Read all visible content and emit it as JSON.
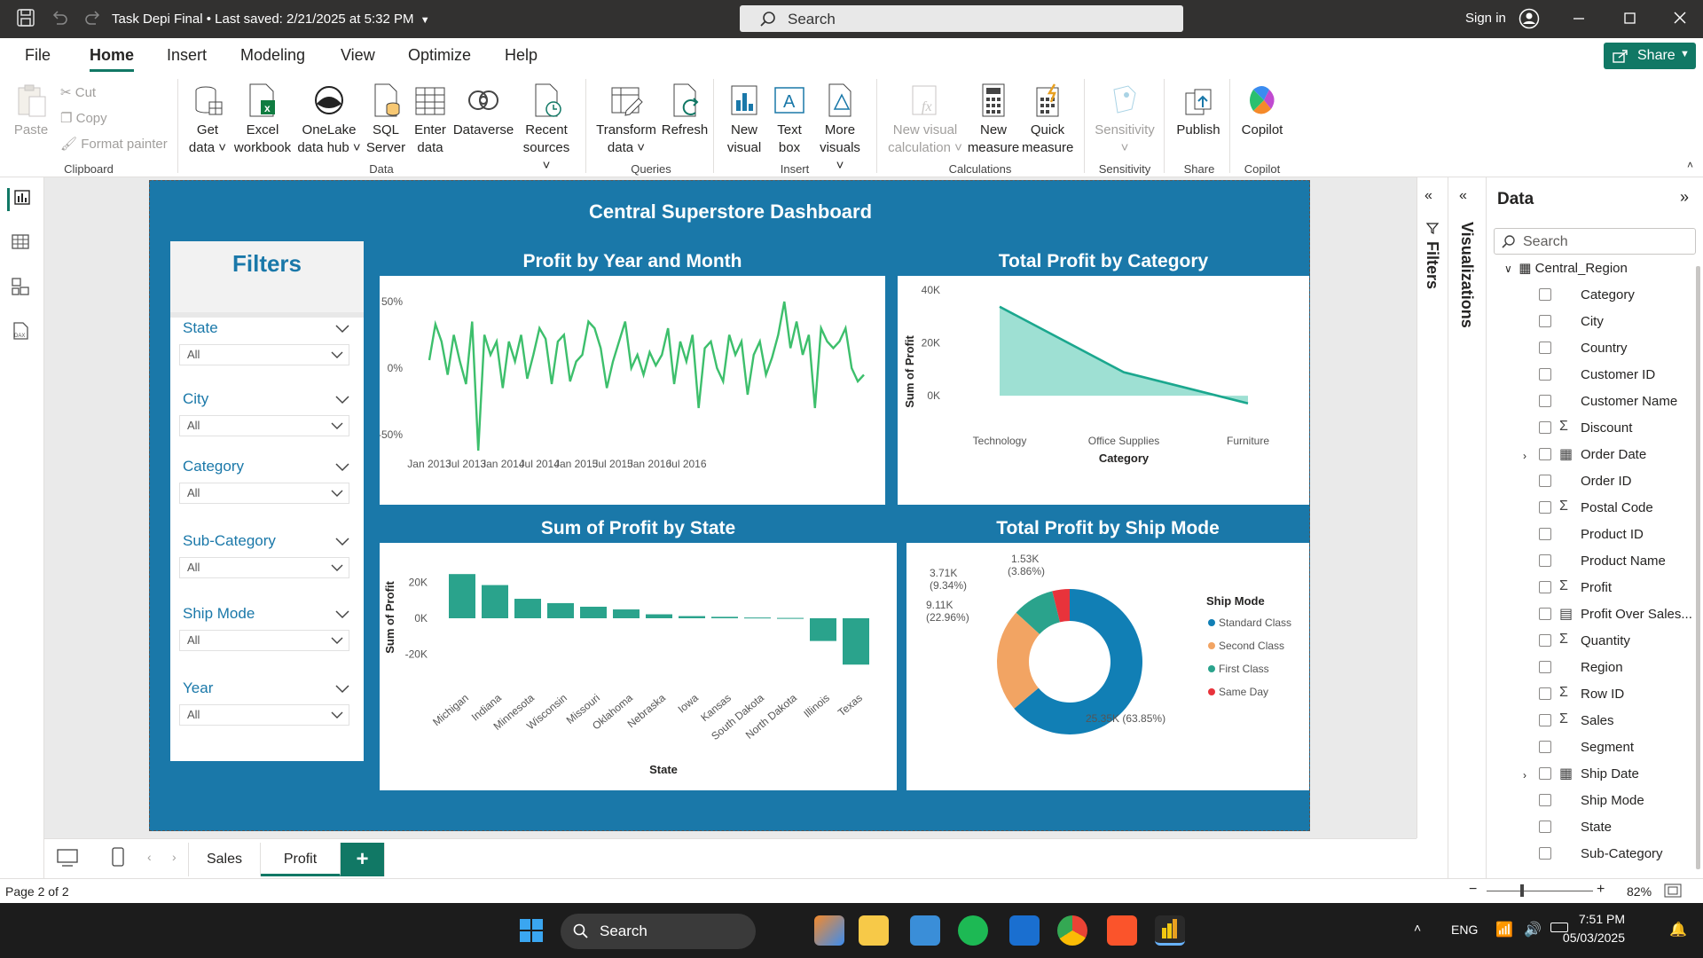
{
  "title_bar": {
    "file_title": "Task Depi Final",
    "saved": "Last saved: 2/21/2025 at 5:32 PM",
    "search_placeholder": "Search",
    "sign_in": "Sign in"
  },
  "menu": {
    "tabs": [
      "File",
      "Home",
      "Insert",
      "Modeling",
      "View",
      "Optimize",
      "Help"
    ],
    "active": "Home",
    "share": "Share"
  },
  "ribbon": {
    "clipboard": {
      "paste": "Paste",
      "cut": "Cut",
      "copy": "Copy",
      "format_painter": "Format painter",
      "group": "Clipboard"
    },
    "data": {
      "get_data_1": "Get",
      "get_data_2": "data",
      "excel_1": "Excel",
      "excel_2": "workbook",
      "onelake_1": "OneLake",
      "onelake_2": "data hub",
      "sql_1": "SQL",
      "sql_2": "Server",
      "enter_1": "Enter",
      "enter_2": "data",
      "dataverse": "Dataverse",
      "recent_1": "Recent",
      "recent_2": "sources",
      "group": "Data"
    },
    "queries": {
      "transform_1": "Transform",
      "transform_2": "data",
      "refresh": "Refresh",
      "group": "Queries"
    },
    "insert": {
      "new_visual_1": "New",
      "new_visual_2": "visual",
      "text_box_1": "Text",
      "text_box_2": "box",
      "more_1": "More",
      "more_2": "visuals",
      "group": "Insert"
    },
    "calculations": {
      "new_visual_calc_1": "New visual",
      "new_visual_calc_2": "calculation",
      "new_measure_1": "New",
      "new_measure_2": "measure",
      "quick_measure_1": "Quick",
      "quick_measure_2": "measure",
      "group": "Calculations"
    },
    "sensitivity": {
      "label": "Sensitivity",
      "group": "Sensitivity"
    },
    "share": {
      "publish": "Publish",
      "group": "Share"
    },
    "copilot": {
      "label": "Copilot",
      "group": "Copilot"
    }
  },
  "report": {
    "title": "Central Superstore Dashboard",
    "filters": {
      "title": "Filters",
      "items": [
        {
          "label": "State",
          "value": "All"
        },
        {
          "label": "City",
          "value": "All"
        },
        {
          "label": "Category",
          "value": "All"
        },
        {
          "label": "Sub-Category",
          "value": "All"
        },
        {
          "label": "Ship Mode",
          "value": "All"
        },
        {
          "label": "Year",
          "value": "All"
        }
      ]
    },
    "visuals": {
      "profit_month": {
        "title": "Profit by Year and Month"
      },
      "profit_category": {
        "title": "Total Profit by Category"
      },
      "profit_state": {
        "title": "Sum of Profit by State"
      },
      "profit_shipmode": {
        "title": "Total Profit by Ship Mode"
      }
    }
  },
  "chart_data": [
    {
      "type": "line",
      "title": "Profit by Year and Month",
      "series": [
        {
          "values": [
            6,
            33,
            20,
            -5,
            25,
            5,
            -12,
            35,
            -62,
            25,
            10,
            20,
            -15,
            20,
            5,
            25,
            -8,
            10,
            30,
            22,
            -12,
            20,
            25,
            -10,
            5,
            10,
            35,
            30,
            15,
            -15,
            5,
            20,
            35,
            0,
            10,
            -5,
            12,
            2,
            10,
            30,
            -12,
            20,
            5,
            25,
            -30,
            15,
            20,
            0,
            -10,
            25,
            10,
            20,
            -20,
            10,
            20,
            -5,
            8,
            25,
            50,
            15,
            35,
            10,
            25,
            -30,
            30,
            20,
            15,
            20,
            30,
            0,
            -10,
            -5
          ]
        }
      ],
      "x_ticks": [
        "Jan 2013",
        "Jul 2013",
        "Jan 2014",
        "Jul 2014",
        "Jan 2015",
        "Jul 2015",
        "Jan 2016",
        "Jul 2016"
      ],
      "y_ticks": [
        "50%",
        "0%",
        "-50%"
      ],
      "ylim": [
        -60,
        60
      ]
    },
    {
      "type": "area",
      "title": "Total Profit by Category",
      "categories": [
        "Technology",
        "Office Supplies",
        "Furniture"
      ],
      "values": [
        33700,
        8900,
        -2900
      ],
      "xlabel": "Category",
      "ylabel": "Sum of Profit",
      "y_ticks": [
        "40K",
        "20K",
        "0K"
      ],
      "ylim": [
        0,
        40000
      ]
    },
    {
      "type": "bar",
      "title": "Sum of Profit by State",
      "categories": [
        "Michigan",
        "Indiana",
        "Minnesota",
        "Wisconsin",
        "Missouri",
        "Oklahoma",
        "Nebraska",
        "Iowa",
        "Kansas",
        "South Dakota",
        "North Dakota",
        "Illinois",
        "Texas"
      ],
      "values": [
        24500,
        18400,
        10800,
        8400,
        6400,
        4900,
        2200,
        1200,
        800,
        400,
        200,
        -12600,
        -25700
      ],
      "xlabel": "State",
      "ylabel": "Sum of Profit",
      "y_ticks": [
        "20K",
        "0K",
        "-20K"
      ],
      "ylim": [
        -30000,
        30000
      ]
    },
    {
      "type": "pie",
      "title": "Total Profit by Ship Mode",
      "legend_title": "Ship Mode",
      "slices": [
        {
          "name": "Standard Class",
          "value": 25350,
          "label": "25.35K (63.85%)"
        },
        {
          "name": "Second Class",
          "value": 9110,
          "label": "9.11K (22.96%)"
        },
        {
          "name": "First Class",
          "value": 3710,
          "label": "3.71K (9.34%)"
        },
        {
          "name": "Same Day",
          "value": 1530,
          "label": "1.53K (3.86%)"
        }
      ],
      "colors": [
        "#117fb5",
        "#f2a463",
        "#2aa38c",
        "#e8333b"
      ]
    }
  ],
  "right_panes": {
    "filters": "Filters",
    "visualizations": "Visualizations",
    "data": {
      "title": "Data",
      "search": "Search",
      "table": "Central_Region",
      "fields": [
        {
          "name": "Category",
          "sym": ""
        },
        {
          "name": "City",
          "sym": ""
        },
        {
          "name": "Country",
          "sym": ""
        },
        {
          "name": "Customer ID",
          "sym": ""
        },
        {
          "name": "Customer Name",
          "sym": ""
        },
        {
          "name": "Discount",
          "sym": "Σ"
        },
        {
          "name": "Order Date",
          "sym": "cal",
          "expand": true
        },
        {
          "name": "Order ID",
          "sym": ""
        },
        {
          "name": "Postal Code",
          "sym": "Σ"
        },
        {
          "name": "Product ID",
          "sym": ""
        },
        {
          "name": "Product Name",
          "sym": ""
        },
        {
          "name": "Profit",
          "sym": "Σ"
        },
        {
          "name": "Profit Over Sales...",
          "sym": "calc"
        },
        {
          "name": "Quantity",
          "sym": "Σ"
        },
        {
          "name": "Region",
          "sym": ""
        },
        {
          "name": "Row ID",
          "sym": "Σ"
        },
        {
          "name": "Sales",
          "sym": "Σ"
        },
        {
          "name": "Segment",
          "sym": ""
        },
        {
          "name": "Ship Date",
          "sym": "cal",
          "expand": true
        },
        {
          "name": "Ship Mode",
          "sym": ""
        },
        {
          "name": "State",
          "sym": ""
        },
        {
          "name": "Sub-Category",
          "sym": ""
        }
      ]
    }
  },
  "pages": {
    "tabs": [
      "Sales",
      "Profit"
    ],
    "active": "Profit",
    "add": "+"
  },
  "status": {
    "page": "Page 2 of 2",
    "zoom": "82%"
  },
  "taskbar": {
    "search": "Search",
    "lang": "ENG",
    "time": "7:51 PM",
    "date": "05/03/2025"
  }
}
